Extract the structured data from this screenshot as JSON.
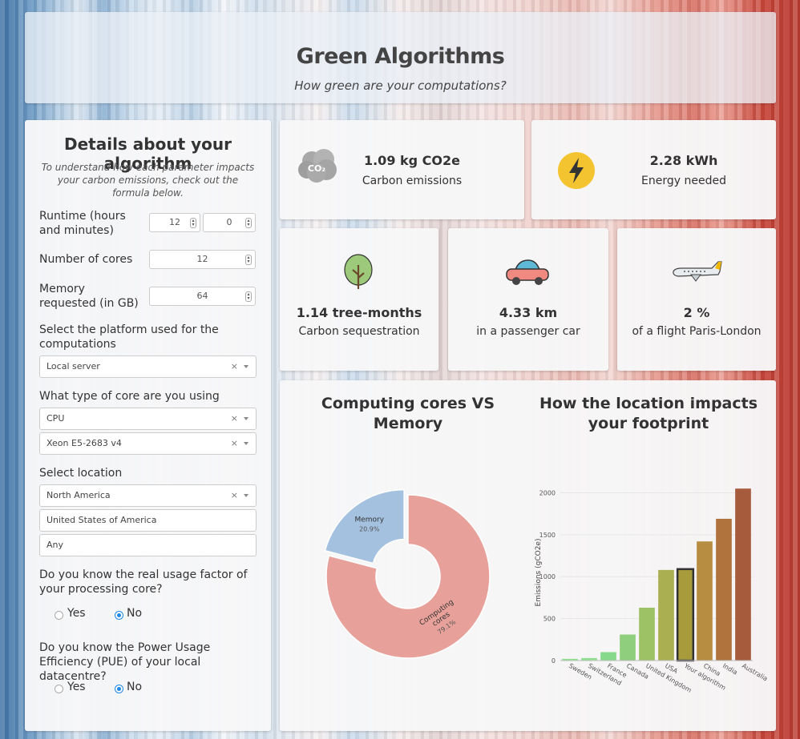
{
  "header": {
    "title": "Green Algorithms",
    "subtitle": "How green are your computations?"
  },
  "form": {
    "title": "Details about your algorithm",
    "note": "To understand how each parameter impacts your carbon emissions, check out the formula below.",
    "runtime": {
      "label": "Runtime (hours and minutes)",
      "hours": "12",
      "minutes": "0"
    },
    "cores": {
      "label": "Number of cores",
      "value": "12"
    },
    "memory": {
      "label": "Memory requested (in GB)",
      "value": "64"
    },
    "platform": {
      "label": "Select the platform used for the computations",
      "value": "Local server"
    },
    "core_type": {
      "label": "What type of core are you using",
      "type_value": "CPU",
      "model_value": "Xeon E5-2683 v4"
    },
    "location": {
      "label": "Select location",
      "continent": "North America",
      "country": "United States of America",
      "region": "Any"
    },
    "usage_factor": {
      "label": "Do you know the real usage factor of your processing core?",
      "yes": "Yes",
      "no": "No",
      "selected": "No"
    },
    "pue": {
      "label": "Do you know the Power Usage Efficiency (PUE) of your local datacentre?",
      "yes": "Yes",
      "no": "No",
      "selected": "No"
    },
    "clear_symbol": "×"
  },
  "results": {
    "carbon": {
      "value": "1.09 kg CO2e",
      "caption": "Carbon emissions",
      "icon": "co2-cloud-icon",
      "icon_text": "CO₂"
    },
    "energy": {
      "value": "2.28 kWh",
      "caption": "Energy needed",
      "icon": "lightning-icon"
    },
    "tree": {
      "value": "1.14 tree-months",
      "caption": "Carbon sequestration",
      "icon": "tree-icon"
    },
    "car": {
      "value": "4.33 km",
      "caption": "in a passenger car",
      "icon": "car-icon"
    },
    "flight": {
      "value": "2 %",
      "caption": "of a flight Paris-London",
      "icon": "airplane-icon"
    }
  },
  "chart_data": [
    {
      "type": "pie",
      "title": "Computing cores VS Memory",
      "slices": [
        {
          "label": "Memory",
          "value": 20.9,
          "value_label": "20.9%",
          "color": "#a4c1e0"
        },
        {
          "label": "Computing cores",
          "value": 79.1,
          "value_label": "79.1%",
          "color": "#e8a19a"
        }
      ]
    },
    {
      "type": "bar",
      "title": "How the location impacts your footprint",
      "ylabel": "Emissions (gCO2e)",
      "ylim": [
        0,
        2100
      ],
      "yticks": [
        0,
        500,
        1000,
        1500,
        2000
      ],
      "categories": [
        "Sweden",
        "Switzerland",
        "France",
        "Canada",
        "United Kingdom",
        "USA",
        "Your algorithm",
        "China",
        "India",
        "Australia"
      ],
      "values": [
        20,
        30,
        100,
        310,
        630,
        1080,
        1090,
        1420,
        1690,
        2050
      ],
      "colors": [
        "#8fe08f",
        "#8fe08f",
        "#86d98a",
        "#8fce7c",
        "#9dc266",
        "#aab052",
        "#a89b3c",
        "#b78d42",
        "#b0733e",
        "#a65b3d"
      ],
      "highlight": "Your algorithm",
      "highlight_border": "#333333"
    }
  ]
}
